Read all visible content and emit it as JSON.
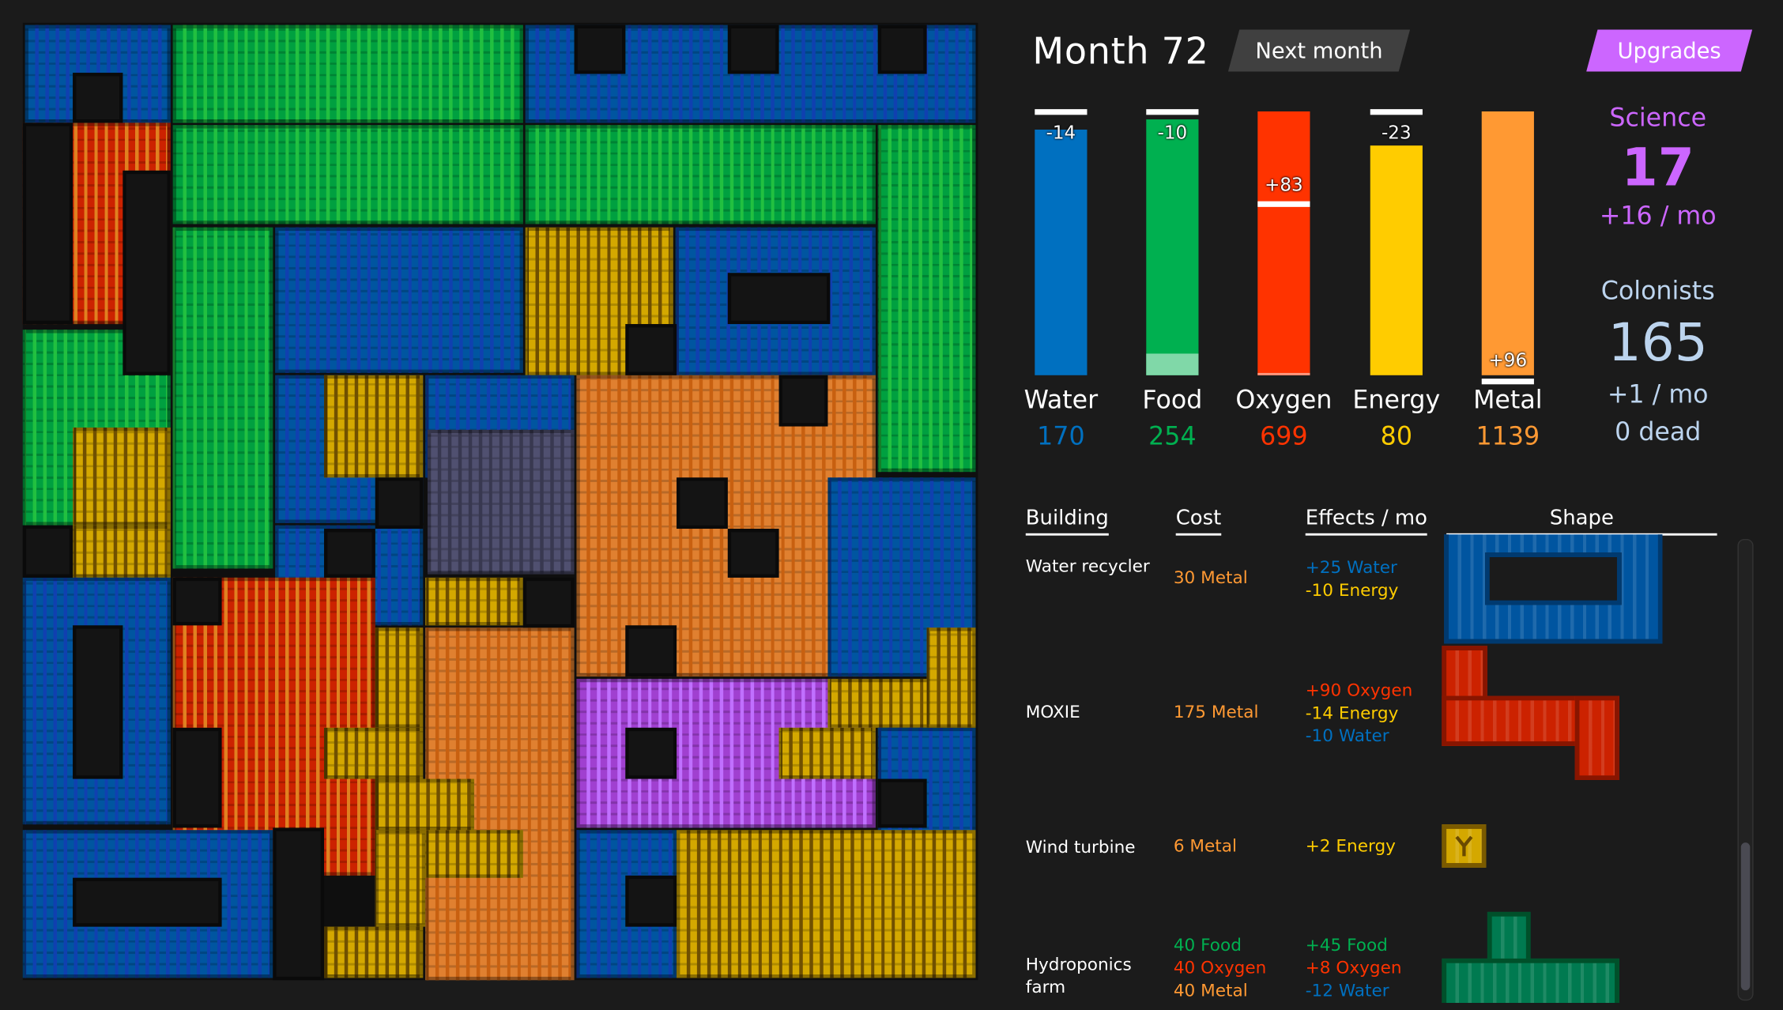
{
  "header": {
    "month_label": "Month 72",
    "next_button": "Next month",
    "upgrades_button": "Upgrades"
  },
  "colors": {
    "water": "#0070c0",
    "food": "#00b050",
    "oxygen": "#ff3300",
    "energy": "#ffcc00",
    "metal": "#ff9933",
    "science": "#cc66ff",
    "colonists": "#bcd4ee"
  },
  "resources": [
    {
      "name": "Water",
      "value": "170",
      "delta": "-14",
      "fill": 0.93,
      "marker": 1.0,
      "color": "#0070c0",
      "low_color": ""
    },
    {
      "name": "Food",
      "value": "254",
      "delta": "-10",
      "fill": 0.97,
      "marker": 1.0,
      "color": "#00b050",
      "low_color": "#80d8a8",
      "low_fill": 0.08
    },
    {
      "name": "Oxygen",
      "value": "699",
      "delta": "+83",
      "fill": 1.0,
      "marker": 0.65,
      "color": "#ff3300",
      "low_color": "#ff9980",
      "low_fill": 0.01
    },
    {
      "name": "Energy",
      "value": "80",
      "delta": "-23",
      "fill": 0.87,
      "marker": 1.0,
      "color": "#ffcc00",
      "low_color": ""
    },
    {
      "name": "Metal",
      "value": "1139",
      "delta": "+96",
      "fill": 1.0,
      "marker": -0.02,
      "color": "#ff9933",
      "low_color": ""
    }
  ],
  "science": {
    "label": "Science",
    "value": "17",
    "rate": "+16 / mo"
  },
  "colonists": {
    "label": "Colonists",
    "value": "165",
    "rate": "+1 / mo",
    "dead": "0 dead"
  },
  "table": {
    "headers": [
      "Building",
      "Cost",
      "Effects / mo",
      "Shape"
    ],
    "rows": [
      {
        "name": "Water recycler",
        "cost": [
          {
            "text": "30 Metal",
            "color": "#ff9933"
          }
        ],
        "effects": [
          {
            "text": "+25 Water",
            "color": "#0070c0"
          },
          {
            "text": "-10 Energy",
            "color": "#ffcc00"
          }
        ]
      },
      {
        "name": "MOXIE",
        "cost": [
          {
            "text": "175 Metal",
            "color": "#ff9933"
          }
        ],
        "effects": [
          {
            "text": "+90 Oxygen",
            "color": "#ff3300"
          },
          {
            "text": "-14 Energy",
            "color": "#ffcc00"
          },
          {
            "text": "-10 Water",
            "color": "#0070c0"
          }
        ]
      },
      {
        "name": "Wind turbine",
        "cost": [
          {
            "text": "6 Metal",
            "color": "#ff9933"
          }
        ],
        "effects": [
          {
            "text": "+2 Energy",
            "color": "#ffcc00"
          }
        ]
      },
      {
        "name": "Hydroponics farm",
        "cost": [
          {
            "text": "40 Food",
            "color": "#00b050"
          },
          {
            "text": "40 Oxygen",
            "color": "#ff3300"
          },
          {
            "text": "40 Metal",
            "color": "#ff9933"
          }
        ],
        "effects": [
          {
            "text": "+45 Food",
            "color": "#00b050"
          },
          {
            "text": "+8 Oxygen",
            "color": "#ff3300"
          },
          {
            "text": "-12 Water",
            "color": "#0070c0"
          }
        ]
      }
    ]
  }
}
